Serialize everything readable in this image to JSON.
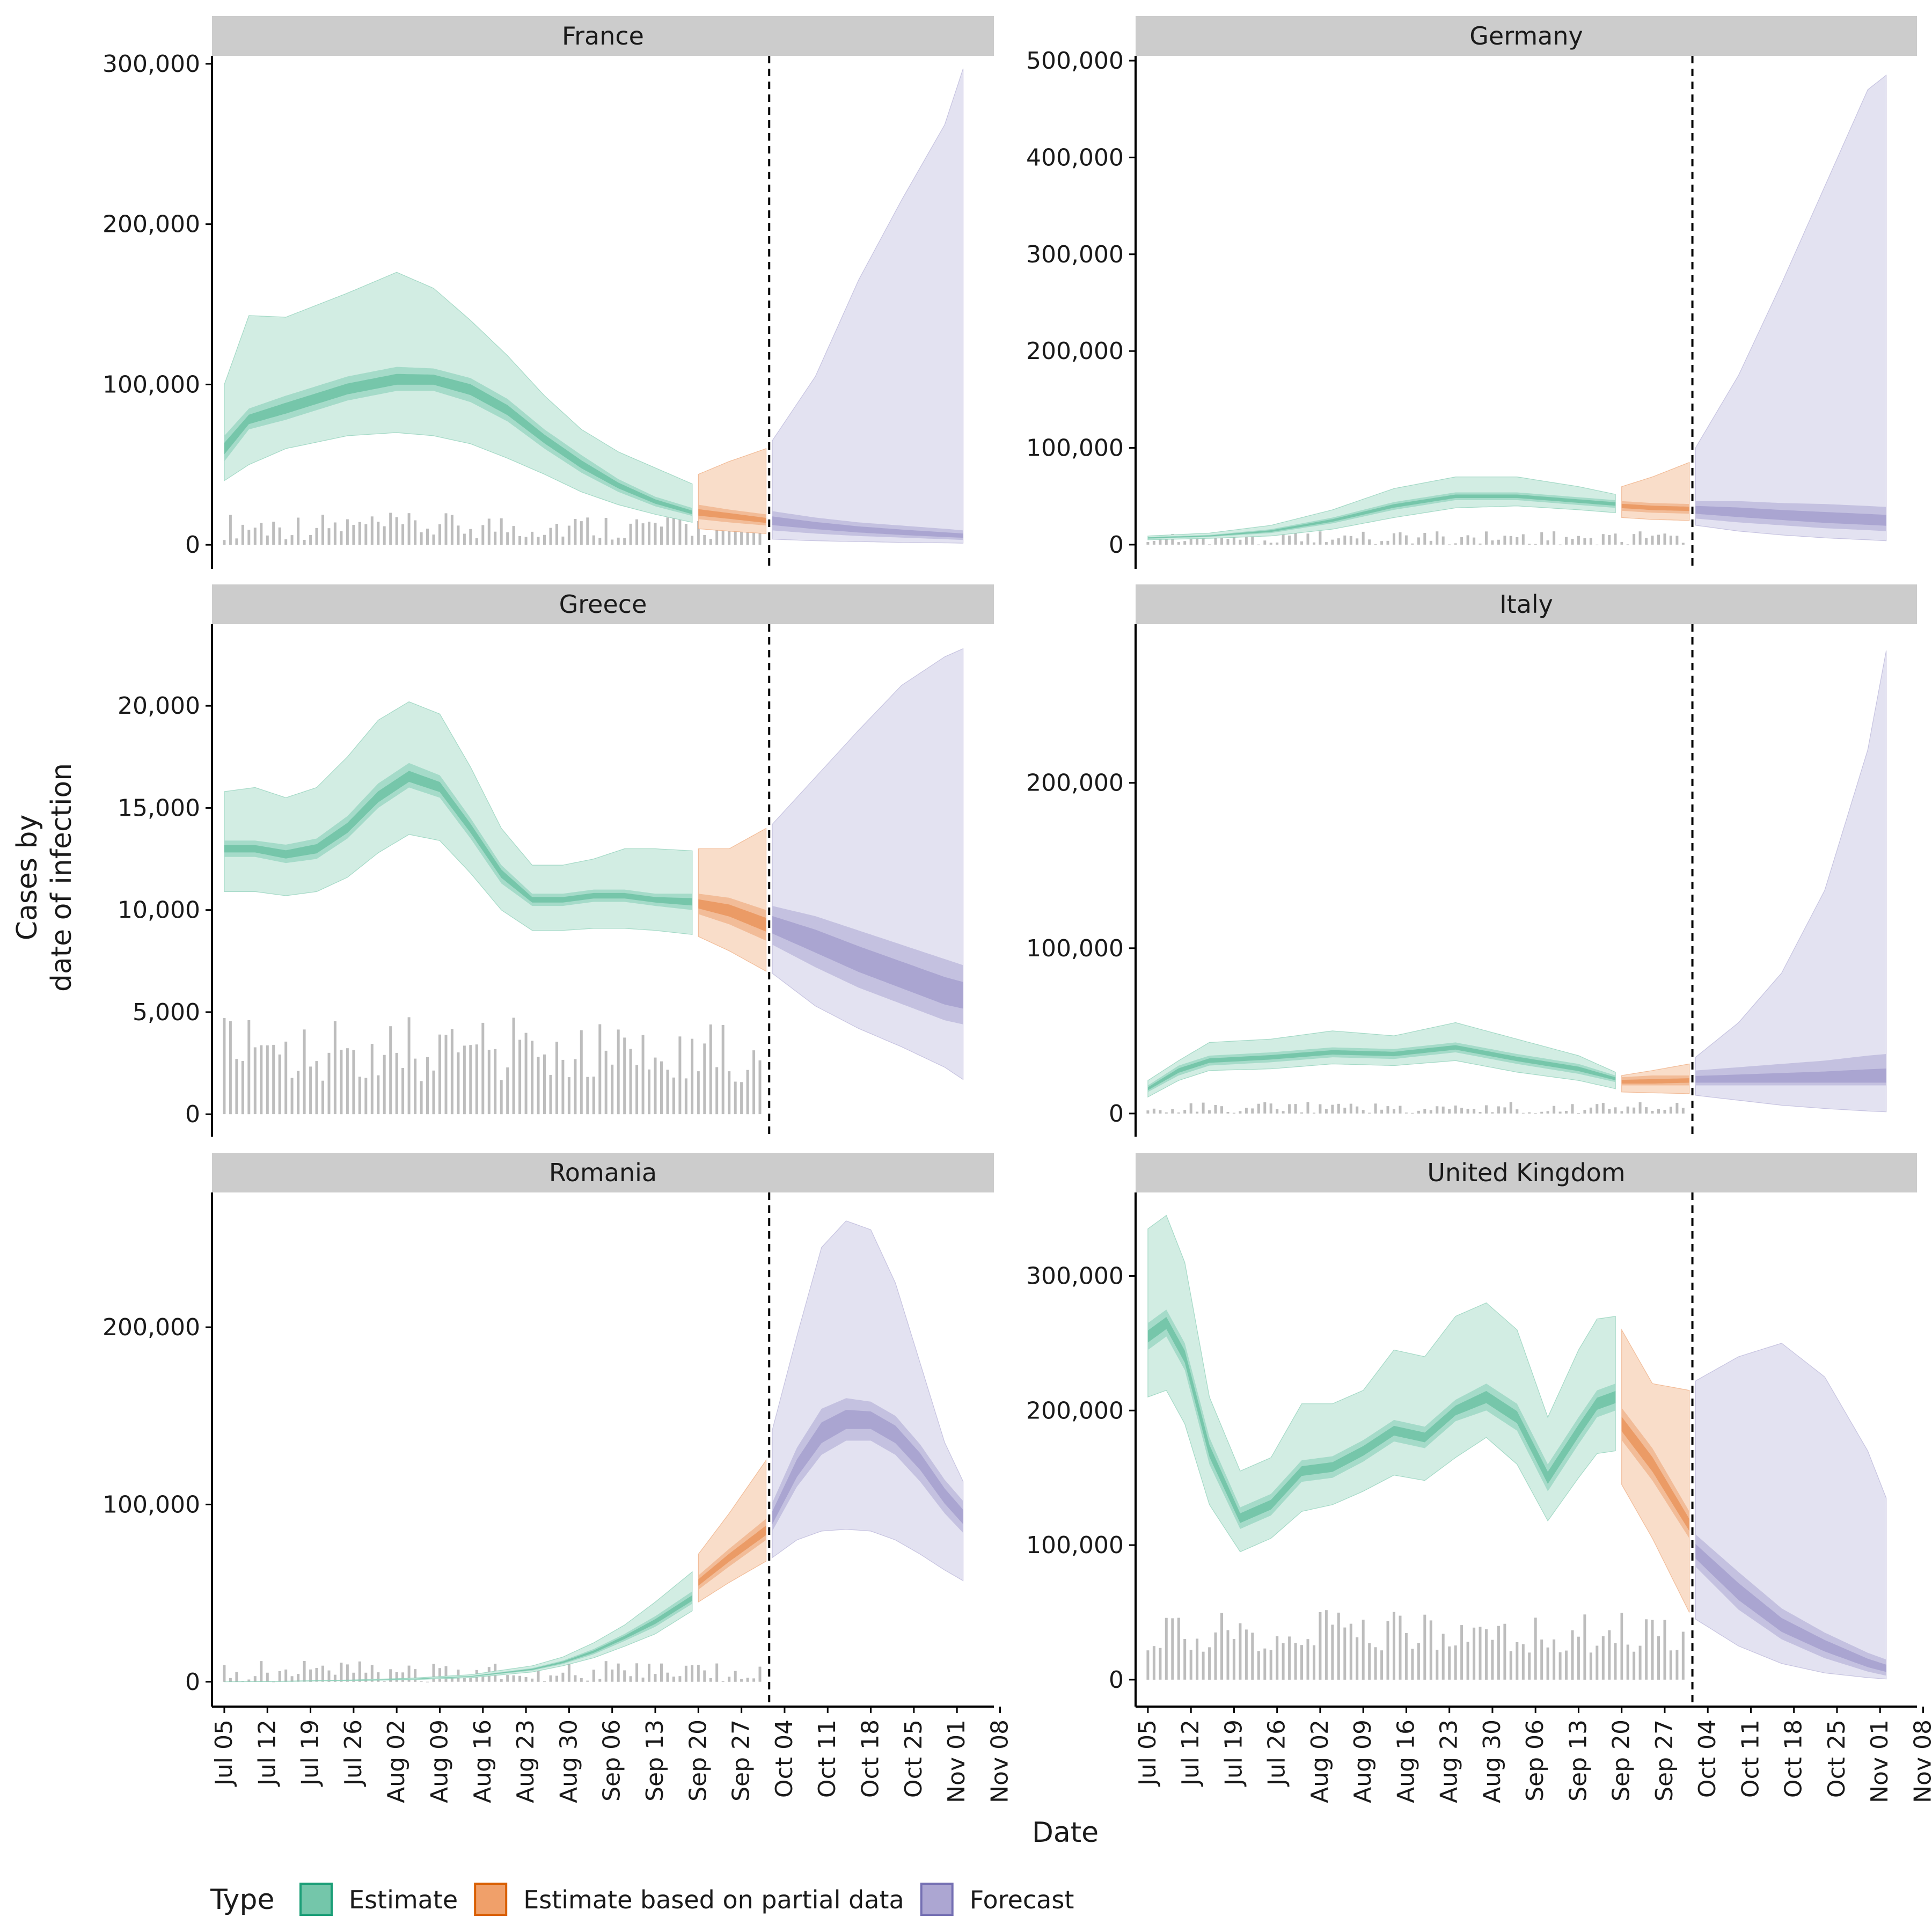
{
  "chart_data": {
    "type": "area",
    "xlabel": "Date",
    "ylabel": [
      "Cases by",
      "date of infection"
    ],
    "x_ticks": [
      "Jul 05",
      "Jul 12",
      "Jul 19",
      "Jul 26",
      "Aug 02",
      "Aug 09",
      "Aug 16",
      "Aug 23",
      "Aug 30",
      "Sep 06",
      "Sep 13",
      "Sep 20",
      "Sep 27",
      "Oct 04",
      "Oct 11",
      "Oct 18",
      "Oct 25",
      "Nov 01",
      "Nov 08"
    ],
    "x_range_days": [
      -2,
      125
    ],
    "segments_days": {
      "estimate": [
        0,
        76
      ],
      "partial": [
        77,
        88
      ],
      "forecast": [
        89,
        120
      ]
    },
    "cutoff_day": 88,
    "legend": {
      "title": "Type",
      "items": [
        {
          "label": "Estimate",
          "fill": "#74c6aa",
          "stroke": "#1b9e77"
        },
        {
          "label": "Estimate based on partial data",
          "fill": "#f0a06a",
          "stroke": "#d95f02"
        },
        {
          "label": "Forecast",
          "fill": "#aca6d2",
          "stroke": "#7570b3"
        }
      ]
    },
    "colors": {
      "estimate": [
        "#d2ede3",
        "#a5dbc9",
        "#76c6aa"
      ],
      "partial": [
        "#f9ddc9",
        "#f2bc98",
        "#eb9b66"
      ],
      "forecast": [
        "#e3e2f1",
        "#c4c1e0",
        "#aaa5d1"
      ],
      "bars": "#bdbdbd",
      "strip": "#cccccc"
    },
    "panels": [
      {
        "title": "France",
        "ylim": [
          -15000,
          305000
        ],
        "yticks": [
          0,
          100000,
          200000,
          300000
        ],
        "ytick_labels": [
          "0",
          "100,000",
          "200,000",
          "300,000"
        ],
        "bars": [
          3000,
          20000
        ],
        "days": [
          0,
          4,
          10,
          20,
          28,
          34,
          40,
          46,
          52,
          58,
          64,
          70,
          76,
          77,
          82,
          88,
          89,
          96,
          103,
          110,
          117,
          120
        ],
        "median": [
          60000,
          78000,
          85000,
          97000,
          103000,
          103000,
          97000,
          84000,
          66000,
          50000,
          37000,
          27000,
          20000,
          20000,
          18000,
          15000,
          15000,
          12000,
          9500,
          7500,
          6000,
          5500
        ],
        "l50": [
          52000,
          72000,
          78000,
          90000,
          96000,
          96000,
          89000,
          77000,
          60000,
          45000,
          33000,
          24000,
          18000,
          16000,
          14000,
          12000,
          9000,
          7000,
          5500,
          4500,
          3500,
          3000
        ],
        "u50": [
          68000,
          85000,
          93000,
          105000,
          111000,
          110000,
          104000,
          91000,
          72000,
          56000,
          41000,
          30000,
          23000,
          25000,
          22000,
          19000,
          21000,
          17000,
          14000,
          12000,
          10000,
          9000
        ],
        "l90": [
          40000,
          50000,
          60000,
          68000,
          70000,
          68000,
          63000,
          54000,
          44000,
          33000,
          25000,
          19000,
          14000,
          10000,
          8500,
          7000,
          3500,
          2500,
          2000,
          1500,
          1200,
          1000
        ],
        "u90": [
          100000,
          143000,
          142000,
          157000,
          170000,
          160000,
          140000,
          118000,
          93000,
          72000,
          58000,
          48000,
          38000,
          44000,
          52000,
          60000,
          65000,
          105000,
          165000,
          215000,
          262000,
          297000
        ],
        "l_fc": [
          28000,
          27000,
          26000,
          25000,
          24000,
          23000
        ],
        "u_fc": [
          28000,
          27000,
          26000,
          25000,
          24000,
          23000
        ]
      },
      {
        "title": "Germany",
        "ylim": [
          -25000,
          505000
        ],
        "yticks": [
          0,
          100000,
          200000,
          300000,
          400000,
          500000
        ],
        "ytick_labels": [
          "0",
          "100,000",
          "200,000",
          "300,000",
          "400,000",
          "500,000"
        ],
        "bars": [
          0,
          15000
        ],
        "days": [
          0,
          10,
          20,
          30,
          40,
          50,
          60,
          70,
          76,
          77,
          82,
          88,
          89,
          96,
          103,
          110,
          117,
          120
        ],
        "median": [
          7000,
          9000,
          14000,
          25000,
          40000,
          50000,
          50000,
          45000,
          42000,
          40000,
          38000,
          37000,
          36000,
          33000,
          30000,
          27000,
          25000,
          24000
        ],
        "l50": [
          6000,
          8000,
          12000,
          22000,
          36000,
          46000,
          46000,
          41000,
          38000,
          35000,
          33000,
          32000,
          27000,
          23000,
          20000,
          17000,
          15000,
          14000
        ],
        "u50": [
          8000,
          10000,
          16000,
          28000,
          44000,
          54000,
          54000,
          49000,
          46000,
          45000,
          43000,
          42000,
          45000,
          45000,
          43000,
          42000,
          40000,
          39000
        ],
        "l90": [
          5000,
          6500,
          9000,
          16000,
          28000,
          38000,
          40000,
          36000,
          33000,
          28000,
          26000,
          25000,
          20000,
          14000,
          10000,
          7000,
          5000,
          4000
        ],
        "u90": [
          9000,
          12000,
          20000,
          36000,
          58000,
          70000,
          70000,
          60000,
          52000,
          60000,
          70000,
          85000,
          100000,
          175000,
          270000,
          370000,
          470000,
          485000
        ],
        "l_fc": [
          30000,
          25000,
          20000,
          17000,
          15000,
          14000
        ],
        "u_fc": [
          57000,
          62000,
          68000,
          74000,
          79000,
          80000
        ]
      },
      {
        "title": "Greece",
        "ylim": [
          -1100,
          24000
        ],
        "yticks": [
          0,
          5000,
          10000,
          15000,
          20000
        ],
        "ytick_labels": [
          "0",
          "5,000",
          "10,000",
          "15,000",
          "20,000"
        ],
        "bars": [
          1500,
          4800
        ],
        "days": [
          0,
          5,
          10,
          15,
          20,
          25,
          30,
          35,
          40,
          45,
          50,
          55,
          60,
          65,
          70,
          76,
          77,
          82,
          88,
          89,
          96,
          103,
          110,
          117,
          120
        ],
        "median": [
          13000,
          13000,
          12700,
          13000,
          14000,
          15500,
          16500,
          16000,
          14000,
          11800,
          10500,
          10500,
          10700,
          10700,
          10500,
          10400,
          10300,
          10000,
          9300,
          9300,
          8500,
          7600,
          6800,
          6000,
          5800
        ],
        "l50": [
          12600,
          12600,
          12300,
          12500,
          13500,
          15000,
          16000,
          15500,
          13500,
          11300,
          10200,
          10200,
          10400,
          10400,
          10200,
          10000,
          9800,
          9300,
          8500,
          8300,
          7200,
          6200,
          5400,
          4600,
          4400
        ],
        "u50": [
          13400,
          13400,
          13200,
          13500,
          14600,
          16200,
          17200,
          16600,
          14500,
          12200,
          10800,
          10800,
          11000,
          11000,
          10800,
          10800,
          10800,
          10600,
          10000,
          10200,
          9700,
          9000,
          8300,
          7600,
          7300
        ],
        "l90": [
          10900,
          10900,
          10700,
          10900,
          11600,
          12800,
          13700,
          13400,
          11800,
          10000,
          9000,
          9000,
          9100,
          9100,
          9000,
          8800,
          8700,
          8000,
          7000,
          6900,
          5300,
          4200,
          3300,
          2300,
          1700
        ],
        "u90": [
          15800,
          16000,
          15500,
          16000,
          17500,
          19300,
          20200,
          19600,
          17000,
          14000,
          12200,
          12200,
          12500,
          13000,
          13000,
          12900,
          13000,
          13000,
          14000,
          14200,
          16500,
          18800,
          21000,
          22400,
          22800
        ],
        "l_fc": [
          11000,
          10800,
          10400,
          10000,
          9700,
          9600
        ],
        "u_fc": [
          11400,
          11400,
          11200,
          10900,
          10600,
          10300
        ]
      },
      {
        "title": "Italy",
        "ylim": [
          -14000,
          296000
        ],
        "yticks": [
          0,
          100000,
          200000
        ],
        "ytick_labels": [
          "0",
          "100,000",
          "200,000"
        ],
        "bars": [
          0,
          7000
        ],
        "days": [
          0,
          5,
          10,
          20,
          30,
          40,
          50,
          60,
          70,
          76,
          77,
          82,
          88,
          89,
          96,
          103,
          110,
          117,
          120
        ],
        "median": [
          15000,
          26000,
          32000,
          34000,
          37000,
          36000,
          40000,
          33000,
          27000,
          21000,
          19000,
          19000,
          20000,
          20000,
          20000,
          20000,
          20000,
          20000,
          20000
        ],
        "l50": [
          13000,
          23000,
          29000,
          31000,
          34000,
          33000,
          37000,
          30000,
          24000,
          19000,
          17000,
          17000,
          17000,
          17000,
          17000,
          17000,
          17000,
          17000,
          17000
        ],
        "u50": [
          17000,
          29000,
          35000,
          37000,
          40000,
          39000,
          43000,
          36000,
          30000,
          23000,
          22000,
          23000,
          23000,
          26000,
          28000,
          30000,
          32000,
          35000,
          36000
        ],
        "l90": [
          10000,
          20000,
          26000,
          27000,
          30000,
          29000,
          32000,
          25000,
          20000,
          15000,
          13000,
          12500,
          12000,
          11000,
          8000,
          5000,
          3000,
          1500,
          1000
        ],
        "u90": [
          20000,
          32000,
          43000,
          45000,
          50000,
          47000,
          55000,
          45000,
          35000,
          25000,
          23000,
          26000,
          30000,
          34000,
          55000,
          85000,
          135000,
          220000,
          280000
        ],
        "l_fc": [
          17000,
          17000,
          17000,
          17000,
          17000,
          17000
        ],
        "u_fc": [
          26000,
          33000,
          40000,
          50000,
          60000,
          65000
        ]
      },
      {
        "title": "Romania",
        "ylim": [
          -14000,
          276000
        ],
        "yticks": [
          0,
          100000,
          200000
        ],
        "ytick_labels": [
          "0",
          "100,000",
          "200,000"
        ],
        "bars": [
          0,
          12000
        ],
        "days": [
          0,
          10,
          20,
          30,
          40,
          50,
          55,
          60,
          65,
          70,
          76,
          77,
          82,
          88,
          89,
          93,
          97,
          101,
          105,
          109,
          113,
          117,
          120
        ],
        "median": [
          0,
          300,
          800,
          1500,
          3000,
          7000,
          11000,
          17000,
          25000,
          34000,
          47000,
          56000,
          70000,
          85000,
          92000,
          120000,
          140000,
          148000,
          148000,
          140000,
          125000,
          105000,
          93000
        ],
        "l50": [
          0,
          250,
          700,
          1300,
          2700,
          6300,
          10000,
          15500,
          23000,
          31000,
          44000,
          52000,
          65000,
          80000,
          85000,
          110000,
          128000,
          136000,
          136000,
          128000,
          113000,
          95000,
          84000
        ],
        "u50": [
          0,
          350,
          900,
          1700,
          3300,
          7700,
          12000,
          18500,
          27000,
          37000,
          51000,
          60000,
          75000,
          92000,
          101000,
          132000,
          154000,
          160000,
          158000,
          150000,
          134000,
          114000,
          102000
        ],
        "l90": [
          0,
          200,
          600,
          1100,
          2300,
          5500,
          9000,
          13500,
          20000,
          27000,
          40000,
          45000,
          56000,
          68000,
          70000,
          80000,
          85000,
          86000,
          85000,
          80000,
          72000,
          63000,
          57000
        ],
        "u90": [
          0,
          400,
          1000,
          2000,
          4000,
          9000,
          14000,
          22000,
          32000,
          45000,
          62000,
          72000,
          95000,
          125000,
          142000,
          195000,
          245000,
          260000,
          255000,
          225000,
          180000,
          135000,
          113000
        ],
        "l_fc": [],
        "u_fc": []
      },
      {
        "title": "United Kingdom",
        "ylim": [
          -20000,
          362000
        ],
        "yticks": [
          0,
          100000,
          200000,
          300000
        ],
        "ytick_labels": [
          "0",
          "100,000",
          "200,000",
          "300,000"
        ],
        "bars": [
          20000,
          52000
        ],
        "days": [
          0,
          3,
          6,
          10,
          15,
          20,
          25,
          30,
          35,
          40,
          45,
          50,
          55,
          60,
          65,
          70,
          73,
          76,
          77,
          82,
          88,
          89,
          96,
          103,
          110,
          117,
          120
        ],
        "median": [
          255000,
          265000,
          240000,
          170000,
          120000,
          130000,
          155000,
          158000,
          170000,
          185000,
          180000,
          200000,
          210000,
          195000,
          150000,
          185000,
          205000,
          210000,
          190000,
          160000,
          115000,
          95000,
          65000,
          40000,
          25000,
          12000,
          8000
        ],
        "l50": [
          245000,
          255000,
          230000,
          160000,
          112000,
          122000,
          147000,
          150000,
          162000,
          177000,
          172000,
          192000,
          200000,
          185000,
          140000,
          175000,
          195000,
          200000,
          178000,
          148000,
          105000,
          84000,
          52000,
          30000,
          16000,
          6000,
          3000
        ],
        "u50": [
          265000,
          275000,
          250000,
          180000,
          128000,
          138000,
          163000,
          166000,
          178000,
          193000,
          188000,
          208000,
          220000,
          205000,
          160000,
          195000,
          215000,
          220000,
          202000,
          172000,
          125000,
          108000,
          80000,
          53000,
          35000,
          20000,
          15000
        ],
        "l90": [
          210000,
          215000,
          190000,
          130000,
          95000,
          105000,
          125000,
          130000,
          140000,
          152000,
          148000,
          165000,
          180000,
          160000,
          118000,
          150000,
          168000,
          170000,
          145000,
          105000,
          50000,
          45000,
          25000,
          12000,
          5000,
          1500,
          500
        ],
        "u90": [
          335000,
          345000,
          310000,
          210000,
          155000,
          165000,
          205000,
          205000,
          215000,
          245000,
          240000,
          270000,
          280000,
          260000,
          195000,
          245000,
          268000,
          270000,
          260000,
          220000,
          215000,
          222000,
          240000,
          250000,
          225000,
          170000,
          135000
        ],
        "l_fc": [
          70000,
          45000,
          28000,
          16000,
          8000,
          5000
        ],
        "u_fc": [
          140000,
          115000,
          90000,
          65000,
          40000,
          30000
        ]
      }
    ]
  }
}
